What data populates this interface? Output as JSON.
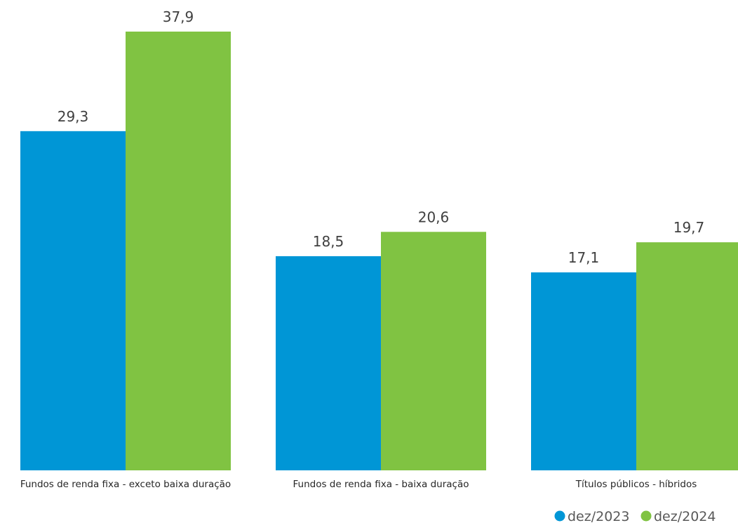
{
  "chart_data": {
    "type": "bar",
    "title": "",
    "xlabel": "",
    "ylabel": "",
    "categories": [
      "Fundos de renda fixa - exceto baixa duração",
      "Fundos de renda fixa - baixa duração",
      "Títulos públicos - híbridos"
    ],
    "series": [
      {
        "name": "dez/2023",
        "color": "#0096D6",
        "values": [
          29.3,
          18.5,
          17.1
        ],
        "labels": [
          "29,3",
          "18,5",
          "17,1"
        ]
      },
      {
        "name": "dez/2024",
        "color": "#80C342",
        "values": [
          37.9,
          20.6,
          19.7
        ],
        "labels": [
          "37,9",
          "20,6",
          "19,7"
        ]
      }
    ],
    "ylim": [
      0,
      37.9
    ],
    "grid": false,
    "legend_position": "bottom-right"
  }
}
